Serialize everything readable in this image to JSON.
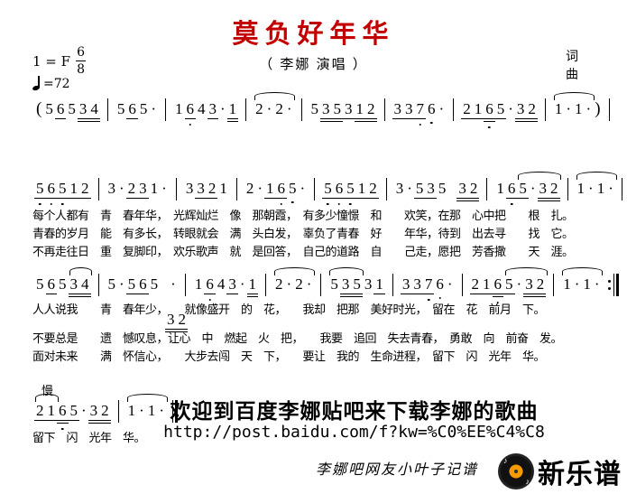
{
  "header": {
    "key": "1 = F",
    "meter_num": "6",
    "meter_den": "8",
    "tempo": "=72",
    "title": "莫负好年华",
    "title_color": "#c20000",
    "subtitle": "（ 李娜 演唱 ）",
    "lyricist_label": "词",
    "composer_label": "曲"
  },
  "music": {
    "slow_label": "慢",
    "lines": [
      {
        "end": "bar",
        "measures": [
          {
            "tokens": [
              {
                "n": "(",
                "paren": 1
              },
              {
                "n": "5"
              },
              {
                "n": "6",
                "u": 1
              },
              {
                "n": "5"
              },
              {
                "n": "3",
                "u": 2
              },
              {
                "n": "4",
                "u": 2
              }
            ]
          },
          {
            "tokens": [
              {
                "n": "5"
              },
              {
                "n": "6",
                "u": 1
              },
              {
                "n": "5"
              },
              {
                "n": "·"
              }
            ]
          },
          {
            "tokens": [
              {
                "n": "1"
              },
              {
                "n": "6",
                "u": 1,
                "lo": 1
              },
              {
                "n": "4"
              },
              {
                "n": "3",
                "u": 1
              },
              {
                "n": "·"
              },
              {
                "n": "1",
                "u": 2
              }
            ]
          },
          {
            "tokens": [
              {
                "n": "2"
              },
              {
                "n": "·"
              },
              {
                "n": "2"
              },
              {
                "n": "·"
              }
            ],
            "arc": [
              0,
              3
            ]
          },
          {
            "tokens": [
              {
                "n": "5"
              },
              {
                "n": "3",
                "u": 2
              },
              {
                "n": "5",
                "u": 2
              },
              {
                "n": "3",
                "u": 1
              },
              {
                "n": "1",
                "u": 2
              },
              {
                "n": "2",
                "u": 2
              }
            ]
          },
          {
            "tokens": [
              {
                "n": "3",
                "u": 1
              },
              {
                "n": "3",
                "u": 1
              },
              {
                "n": "7",
                "u": 1,
                "lo": 1
              },
              {
                "n": "6",
                "lo": 1
              },
              {
                "n": "·"
              }
            ]
          },
          {
            "tokens": [
              {
                "n": "2",
                "u": 1
              },
              {
                "n": "1",
                "u": 1
              },
              {
                "n": "6",
                "u": 2,
                "lo": 1
              },
              {
                "n": "5",
                "u": 1
              },
              {
                "n": "·"
              },
              {
                "n": "3",
                "u": 2
              },
              {
                "n": "2",
                "u": 2
              }
            ]
          },
          {
            "tokens": [
              {
                "n": "1"
              },
              {
                "n": "·"
              },
              {
                "n": "1"
              },
              {
                "n": "·"
              },
              {
                "n": ")",
                "paren": 1
              }
            ],
            "arc": [
              0,
              3
            ]
          }
        ]
      },
      {
        "end": "bar",
        "measures": [
          {
            "tokens": [
              {
                "n": "5",
                "u": 1,
                "lo": 1
              },
              {
                "n": "6",
                "u": 1,
                "lo": 1
              },
              {
                "n": "5",
                "u": 1,
                "lo": 1
              },
              {
                "n": "1",
                "u": 1
              },
              {
                "n": "2",
                "u": 1
              }
            ]
          },
          {
            "tokens": [
              {
                "n": "3"
              },
              {
                "n": "·"
              },
              {
                "n": "2",
                "u": 1
              },
              {
                "n": "3",
                "u": 1
              },
              {
                "n": "1"
              },
              {
                "n": "·"
              }
            ]
          },
          {
            "tokens": [
              {
                "n": "3"
              },
              {
                "n": "3",
                "u": 1
              },
              {
                "n": "2",
                "u": 1
              },
              {
                "n": "1"
              }
            ]
          },
          {
            "tokens": [
              {
                "n": "2"
              },
              {
                "n": "·"
              },
              {
                "n": "1",
                "u": 1
              },
              {
                "n": "6",
                "u": 1,
                "lo": 1
              },
              {
                "n": "5",
                "lo": 1
              },
              {
                "n": "·"
              }
            ]
          },
          {
            "tokens": [
              {
                "n": "5",
                "u": 1,
                "lo": 1
              },
              {
                "n": "6",
                "u": 1,
                "lo": 1
              },
              {
                "n": "5",
                "u": 1,
                "lo": 1
              },
              {
                "n": "1",
                "u": 1
              },
              {
                "n": "2",
                "u": 1
              }
            ]
          },
          {
            "tokens": [
              {
                "n": "3"
              },
              {
                "n": "·"
              },
              {
                "n": "5",
                "u": 1
              },
              {
                "n": "3",
                "u": 1
              },
              {
                "n": "5"
              },
              {
                "sp": 1
              },
              {
                "n": "3",
                "u": 2
              },
              {
                "n": "2",
                "u": 2
              }
            ]
          },
          {
            "tokens": [
              {
                "n": "1"
              },
              {
                "n": "6",
                "u": 1,
                "lo": 1
              },
              {
                "n": "5",
                "u": 1
              },
              {
                "n": "·"
              },
              {
                "n": "3",
                "u": 2
              },
              {
                "n": "2",
                "u": 2
              }
            ],
            "arc": [
              2,
              5
            ]
          },
          {
            "tokens": [
              {
                "n": "1"
              },
              {
                "n": "·"
              },
              {
                "n": "1"
              },
              {
                "n": "·"
              }
            ],
            "arc": [
              0,
              3
            ]
          }
        ]
      },
      {
        "end": "repeat",
        "measures": [
          {
            "tokens": [
              {
                "n": "5"
              },
              {
                "n": "6",
                "u": 1
              },
              {
                "n": "5"
              },
              {
                "n": "3",
                "u": 2
              },
              {
                "n": "4",
                "u": 2
              }
            ],
            "arc": [
              3,
              4
            ]
          },
          {
            "tokens": [
              {
                "n": "5"
              },
              {
                "n": "·"
              },
              {
                "n": "5",
                "u": 1
              },
              {
                "n": "6",
                "u": 1
              },
              {
                "n": "5"
              },
              {
                "sp": 1
              },
              {
                "n": "·"
              }
            ]
          },
          {
            "tokens": [
              {
                "n": "1"
              },
              {
                "n": "6",
                "u": 1,
                "lo": 1
              },
              {
                "n": "4"
              },
              {
                "n": "3",
                "u": 1
              },
              {
                "n": "·"
              },
              {
                "n": "1",
                "u": 2
              }
            ]
          },
          {
            "tokens": [
              {
                "n": "2"
              },
              {
                "n": "·"
              },
              {
                "n": "2"
              },
              {
                "n": "·"
              }
            ],
            "arc": [
              0,
              3
            ]
          },
          {
            "tokens": [
              {
                "n": "5"
              },
              {
                "n": "3",
                "u": 2
              },
              {
                "n": "5",
                "u": 2
              },
              {
                "n": "3"
              },
              {
                "n": "1",
                "u": 1
              }
            ],
            "arc": [
              0,
              2
            ]
          },
          {
            "tokens": [
              {
                "n": "3",
                "u": 1
              },
              {
                "n": "3",
                "u": 1
              },
              {
                "n": "7",
                "u": 1,
                "lo": 1
              },
              {
                "n": "6",
                "lo": 1
              },
              {
                "n": "·"
              }
            ]
          },
          {
            "tokens": [
              {
                "n": "2",
                "u": 1
              },
              {
                "n": "1",
                "u": 1
              },
              {
                "n": "6",
                "u": 2,
                "lo": 1
              },
              {
                "n": "5",
                "u": 1
              },
              {
                "n": "·"
              },
              {
                "n": "3",
                "u": 2
              },
              {
                "n": "2",
                "u": 2
              }
            ],
            "arc": [
              3,
              6
            ]
          },
          {
            "tokens": [
              {
                "n": "1"
              },
              {
                "n": "·"
              },
              {
                "n": "1"
              },
              {
                "n": "·"
              }
            ],
            "arc": [
              0,
              3
            ]
          }
        ]
      },
      {
        "end": "final",
        "measures": [
          {
            "tokens": [
              {
                "n": "2",
                "u": 1
              },
              {
                "n": "1",
                "u": 1
              },
              {
                "n": "6",
                "u": 2,
                "lo": 1
              },
              {
                "n": "5",
                "u": 1
              },
              {
                "n": "·"
              },
              {
                "n": "3",
                "u": 2
              },
              {
                "n": "2",
                "u": 2
              }
            ],
            "arc": [
              0,
              1
            ]
          },
          {
            "tokens": [
              {
                "n": "1"
              },
              {
                "n": "·"
              },
              {
                "n": "1"
              },
              {
                "n": "·"
              }
            ],
            "arc": [
              0,
              3
            ]
          }
        ]
      }
    ],
    "insert_note": {
      "tokens": [
        {
          "n": "3",
          "u": 2
        },
        {
          "n": "2",
          "u": 2
        }
      ]
    }
  },
  "lyrics": {
    "verse_rows": [
      "每个人都有　青　春年华，　光辉灿烂　像　那朝霞，　有多少憧憬　和　　欢笑，在那　心中把　　根　扎。",
      "青春的岁月　能　有多长，　转眼就会　满　头白发，　辜负了青春　好　　年华，待到　出去寻　　找　它。",
      "不再走往日　重　复脚印，　欢乐歌声　就　是回答，　自己的道路　自　　己走，愿把　芳香撒　　天　涯。"
    ],
    "chorus_rows": [
      "人人说我　　青　春年少，　　就像盛开　的　花，　　我却　把那　美好时光，　留在　花　前月　下。",
      "不要总是　　遗　憾叹息，让心　中　燃起　火　把，　　我要　追回　失去青春，　勇敢　向　前奋　发。",
      "面对未来　　满　怀信心，　　大步去闯　天　下，　　要让　我的　生命进程，　留下　闪　光年　华。"
    ],
    "coda_row": "留下　闪　光年　华。"
  },
  "footer": {
    "promo": "欢迎到百度李娜贴吧来下载李娜的歌曲",
    "url": "http://post.baidu.com/f?kw=%C0%EE%C4%C8",
    "credit": "李娜吧网友小叶子记谱",
    "logo_text": "新乐谱",
    "logo_accent": "#f59a00"
  }
}
